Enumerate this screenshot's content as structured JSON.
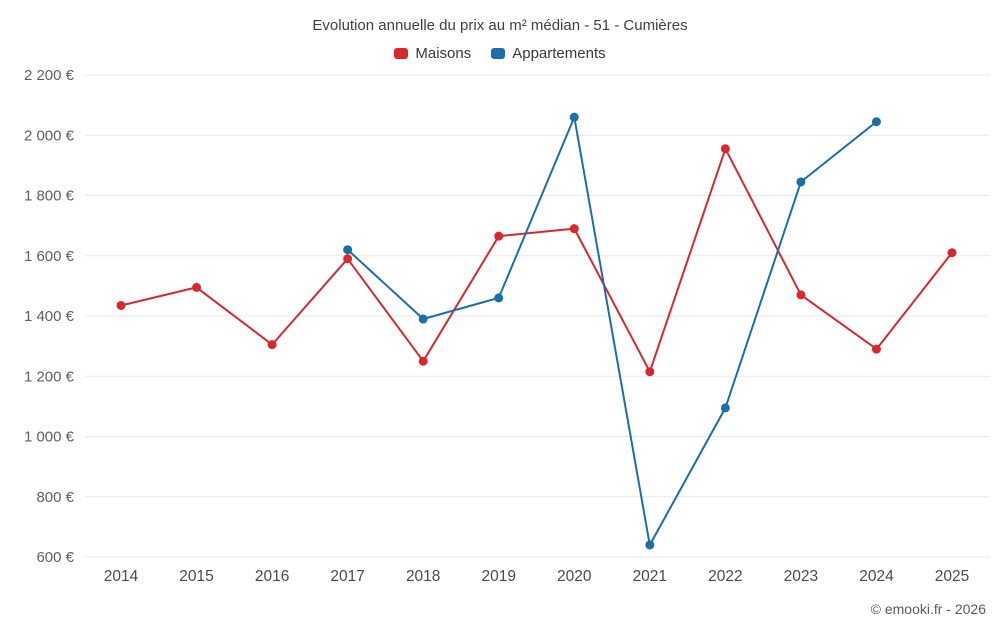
{
  "page": {
    "footer": "© emooki.fr - 2026"
  },
  "chart_data": {
    "type": "line",
    "title": "Evolution annuelle du prix au m² médian - 51 - Cumières",
    "categories": [
      "2014",
      "2015",
      "2016",
      "2017",
      "2018",
      "2019",
      "2020",
      "2021",
      "2022",
      "2023",
      "2024",
      "2025"
    ],
    "series": [
      {
        "name": "Maisons",
        "color": "#d7282f",
        "values": [
          1435,
          1495,
          1305,
          1590,
          1250,
          1665,
          1690,
          1215,
          1955,
          1470,
          1290,
          1610
        ]
      },
      {
        "name": "Appartements",
        "color": "#1c6ea4",
        "values": [
          null,
          null,
          null,
          1620,
          1390,
          1460,
          2060,
          640,
          1095,
          1845,
          2045,
          null
        ]
      }
    ],
    "xlabel": "",
    "ylabel": "",
    "ylim": [
      600,
      2200
    ],
    "y_tick_step": 200,
    "y_tick_labels": [
      "600 €",
      "800 €",
      "1 000 €",
      "1 200 €",
      "1 400 €",
      "1 600 €",
      "1 800 €",
      "2 000 €",
      "2 200 €"
    ],
    "currency": "€",
    "grid": "horizontal",
    "legend_position": "top"
  }
}
